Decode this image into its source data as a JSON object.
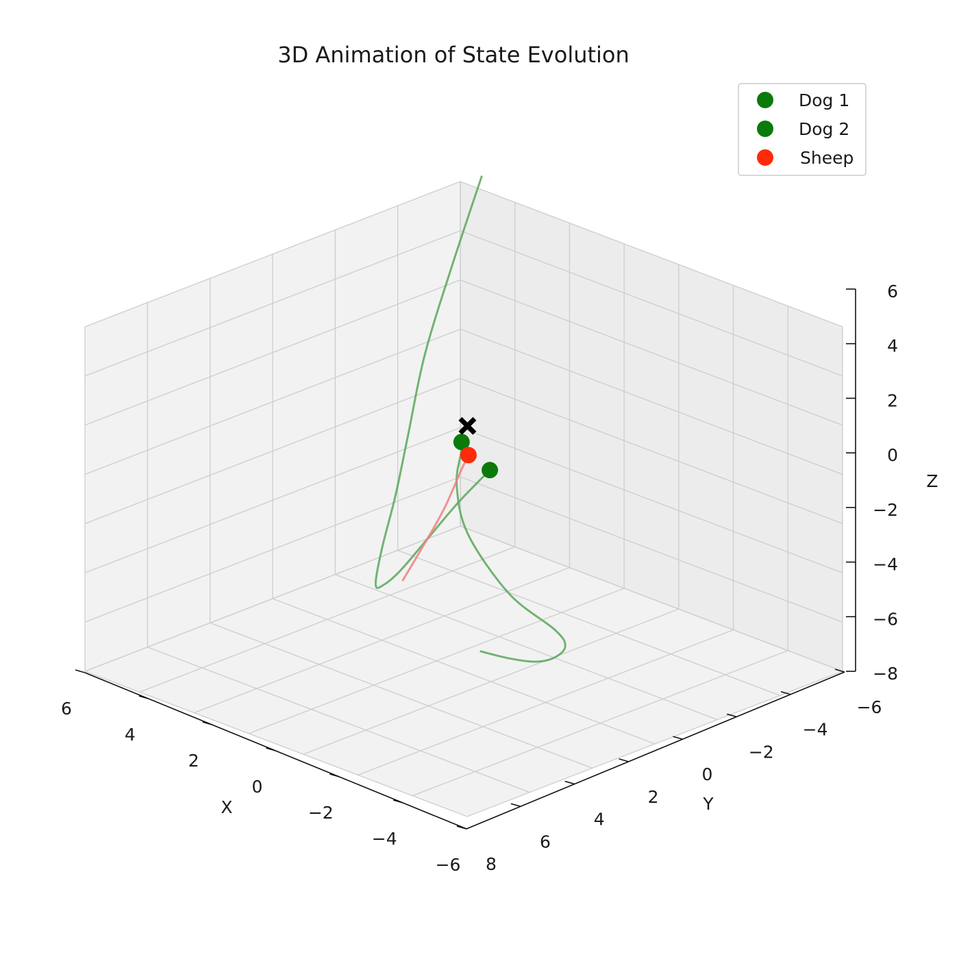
{
  "chart_data": {
    "type": "line3d",
    "title": "3D Animation of State Evolution",
    "xlabel": "X",
    "ylabel": "Y",
    "zlabel": "Z",
    "xlim": [
      -6,
      6
    ],
    "ylim": [
      -6,
      8
    ],
    "zlim": [
      -8,
      6
    ],
    "view": {
      "elev": 20,
      "azim": 135
    },
    "x_ticks": [
      "6",
      "4",
      "2",
      "0",
      "−2",
      "−4",
      "−6"
    ],
    "y_ticks": [
      "−6",
      "−4",
      "−2",
      "0",
      "2",
      "4",
      "6",
      "8"
    ],
    "z_ticks": [
      "6",
      "4",
      "2",
      "0",
      "−2",
      "−4",
      "−6",
      "−8"
    ],
    "grid": true,
    "legend_position": "top-right",
    "colors": {
      "dog": "#1a7a1a",
      "sheep": "#ff2a0a",
      "dog_trail": "#5aa85a",
      "sheep_trail": "#f08080",
      "target": "#000000"
    },
    "series": [
      {
        "name": "Dog 1",
        "color": "#0a7a0a",
        "trail": [
          [
            5.0,
            -5.6,
            5.4
          ],
          [
            5.4,
            -4.9,
            2.0
          ],
          [
            5.7,
            -4.3,
            -1.0
          ],
          [
            5.8,
            -3.8,
            -3.8
          ],
          [
            5.6,
            -3.1,
            -5.6
          ],
          [
            5.1,
            -2.0,
            -6.9
          ],
          [
            4.2,
            -0.7,
            -7.3
          ],
          [
            3.0,
            0.4,
            -6.3
          ],
          [
            1.9,
            1.1,
            -5.0
          ],
          [
            0.9,
            1.4,
            -3.4
          ],
          [
            0.2,
            1.0,
            -1.8
          ],
          [
            -0.3,
            0.4,
            -0.6
          ]
        ],
        "current": [
          -0.3,
          0.4,
          -0.6
        ]
      },
      {
        "name": "Dog 2",
        "color": "#0a7a0a",
        "trail": [
          [
            -5.6,
            7.0,
            -2.1
          ],
          [
            -5.5,
            5.8,
            -2.9
          ],
          [
            -5.3,
            4.6,
            -3.6
          ],
          [
            -4.8,
            3.3,
            -4.2
          ],
          [
            -4.1,
            2.1,
            -4.6
          ],
          [
            -3.1,
            1.3,
            -4.8
          ],
          [
            -1.5,
            1.1,
            -4.3
          ],
          [
            -0.2,
            1.1,
            -2.7
          ],
          [
            0.4,
            0.8,
            -1.3
          ],
          [
            0.5,
            0.5,
            -0.2
          ],
          [
            0.5,
            0.5,
            0.1
          ]
        ],
        "current": [
          0.5,
          0.5,
          0.1
        ]
      },
      {
        "name": "Sheep",
        "color": "#ff2a0a",
        "trail": [
          [
            0.4,
            2.8,
            -4.0
          ],
          [
            0.3,
            2.2,
            -3.0
          ],
          [
            0.2,
            1.5,
            -1.8
          ],
          [
            0.2,
            0.9,
            -0.7
          ],
          [
            0.2,
            0.6,
            -0.2
          ]
        ],
        "current": [
          0.2,
          0.6,
          -0.2
        ]
      }
    ],
    "target": [
      0.4,
      0.4,
      0.7
    ],
    "target_marker": "X"
  }
}
